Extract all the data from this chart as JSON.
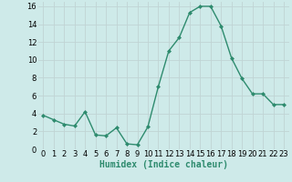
{
  "x": [
    0,
    1,
    2,
    3,
    4,
    5,
    6,
    7,
    8,
    9,
    10,
    11,
    12,
    13,
    14,
    15,
    16,
    17,
    18,
    19,
    20,
    21,
    22,
    23
  ],
  "y": [
    3.8,
    3.3,
    2.8,
    2.6,
    4.2,
    1.6,
    1.5,
    2.4,
    0.6,
    0.5,
    2.5,
    7.0,
    11.0,
    12.5,
    15.3,
    16.0,
    16.0,
    13.8,
    10.2,
    7.9,
    6.2,
    6.2,
    5.0,
    5.0
  ],
  "line_color": "#2e8b6e",
  "marker_style": "D",
  "marker_size": 2,
  "background_color": "#ceeae9",
  "grid_color": "#c0d4d4",
  "xlabel": "Humidex (Indice chaleur)",
  "xlim": [
    -0.5,
    23.5
  ],
  "ylim": [
    0,
    16.5
  ],
  "yticks": [
    0,
    2,
    4,
    6,
    8,
    10,
    12,
    14,
    16
  ],
  "xticks": [
    0,
    1,
    2,
    3,
    4,
    5,
    6,
    7,
    8,
    9,
    10,
    11,
    12,
    13,
    14,
    15,
    16,
    17,
    18,
    19,
    20,
    21,
    22,
    23
  ],
  "label_fontsize": 7,
  "tick_fontsize": 6
}
